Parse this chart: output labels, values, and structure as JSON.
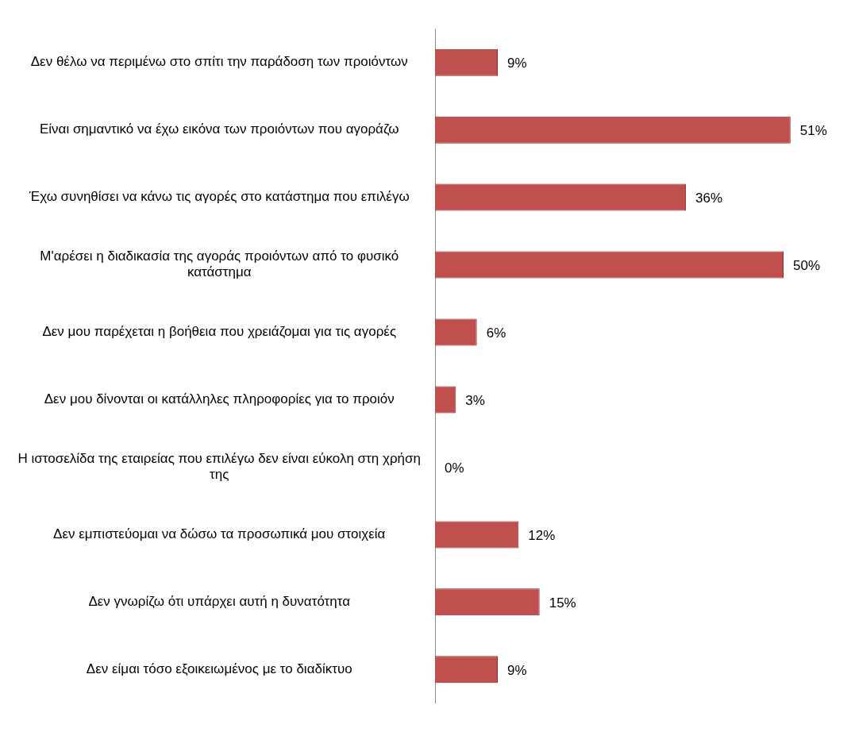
{
  "chart_data": {
    "type": "bar",
    "orientation": "horizontal",
    "categories": [
      "Δεν θέλω να περιμένω στο σπίτι την παράδοση των προιόντων",
      "Είναι σημαντικό να έχω εικόνα των προιόντων που αγοράζω",
      "Έχω συνηθίσει να κάνω τις αγορές στο κατάστημα που επιλέγω",
      "Μ'αρέσει η διαδικασία της αγοράς προιόντων από το φυσικό κατάστημα",
      "Δεν μου παρέχεται η βοήθεια που χρειάζομαι για τις αγορές",
      "Δεν μου δίνονται οι κατάλληλες πληροφορίες για το προιόν",
      "Η ιστοσελίδα της εταιρείας που επιλέγω δεν είναι εύκολη στη χρήση της",
      "Δεν εμπιστεύομαι να δώσω τα προσωπικά μου στοιχεία",
      "Δεν γνωρίζω ότι υπάρχει αυτή η δυνατότητα",
      "Δεν είμαι τόσο εξοικειωμένος με το διαδίκτυο"
    ],
    "values": [
      9,
      51,
      36,
      50,
      6,
      3,
      0,
      12,
      15,
      9
    ],
    "value_labels": [
      "9%",
      "51%",
      "36%",
      "50%",
      "6%",
      "3%",
      "0%",
      "12%",
      "15%",
      "9%"
    ],
    "color": "#c0504d",
    "grid": false,
    "legend": false
  }
}
